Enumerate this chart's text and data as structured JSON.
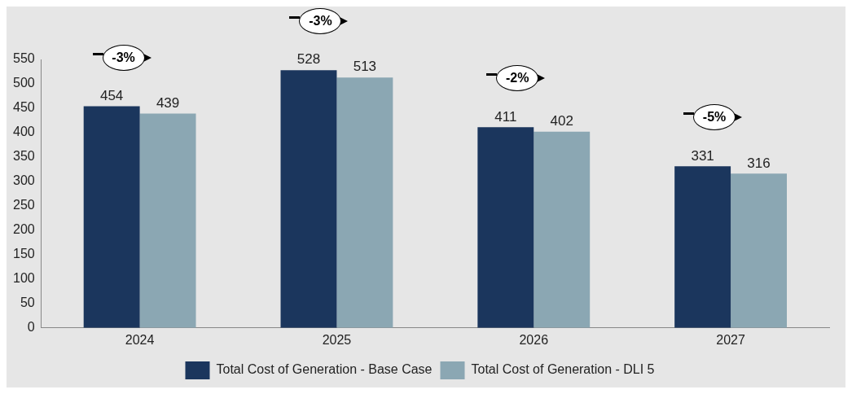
{
  "chart_data": {
    "type": "bar",
    "categories": [
      "2024",
      "2025",
      "2026",
      "2027"
    ],
    "series": [
      {
        "name": "Total Cost of Generation - Base Case",
        "color": "#1b365d",
        "values": [
          454,
          528,
          411,
          331
        ]
      },
      {
        "name": "Total Cost of Generation - DLI 5",
        "color": "#8ba7b3",
        "values": [
          439,
          513,
          402,
          316
        ]
      }
    ],
    "ylim": [
      0,
      550
    ],
    "yticks": [
      0,
      50,
      100,
      150,
      200,
      250,
      300,
      350,
      400,
      450,
      500,
      550
    ],
    "grid": false,
    "legend": "bottom",
    "data_labels": true,
    "annotations": [
      "-3%",
      "-3%",
      "-2%",
      "-5%"
    ]
  }
}
